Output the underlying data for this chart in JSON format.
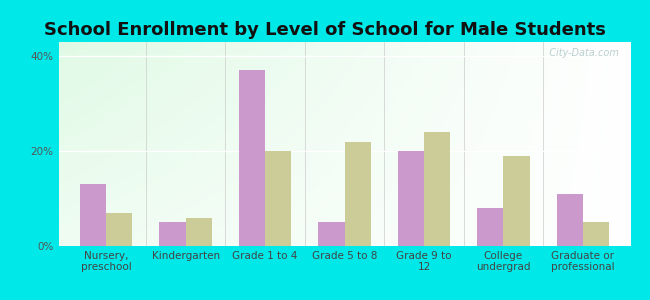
{
  "title": "School Enrollment by Level of School for Male Students",
  "categories": [
    "Nursery,\npreschool",
    "Kindergarten",
    "Grade 1 to 4",
    "Grade 5 to 8",
    "Grade 9 to\n12",
    "College\nundergrad",
    "Graduate or\nprofessional"
  ],
  "gaylord": [
    13,
    5,
    37,
    5,
    20,
    8,
    11
  ],
  "michigan": [
    7,
    6,
    20,
    22,
    24,
    19,
    5
  ],
  "gaylord_color": "#cc99cc",
  "michigan_color": "#cccc99",
  "background_outer": "#00e8e8",
  "yticks": [
    0,
    20,
    40
  ],
  "ylabel_ticks": [
    "0%",
    "20%",
    "40%"
  ],
  "ylim": [
    0,
    43
  ],
  "bar_width": 0.33,
  "title_fontsize": 13,
  "tick_fontsize": 7.5,
  "legend_fontsize": 9,
  "watermark": "  City-Data.com"
}
